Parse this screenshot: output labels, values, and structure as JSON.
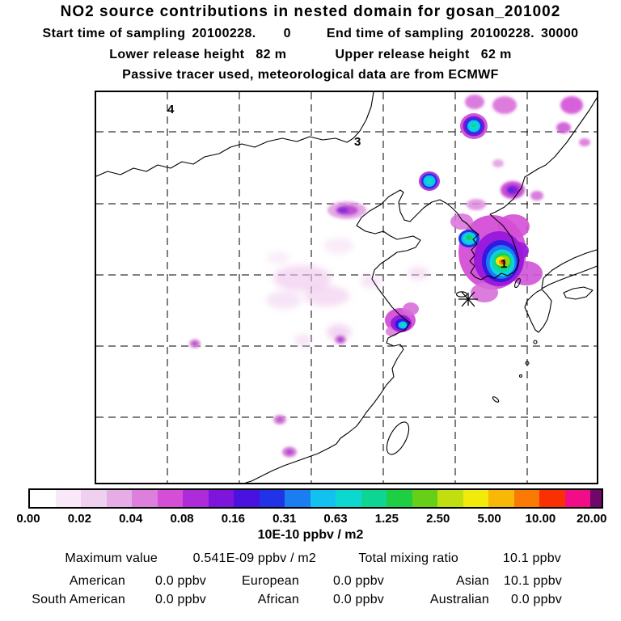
{
  "header": {
    "title": "NO2 source contributions in nested domain for gosan_201002",
    "sampling": {
      "start_label": "Start time of sampling",
      "start_date": "20100228.",
      "start_time": "0",
      "end_label": "End time of sampling",
      "end_date": "20100228.",
      "end_time": "30000"
    },
    "release": {
      "lower_label": "Lower release height",
      "lower_value": "82 m",
      "upper_label": "Upper release height",
      "upper_value": "62 m"
    },
    "tracer_note": "Passive tracer used, meteorological data are from ECMWF"
  },
  "map": {
    "region_labels": [
      "4",
      "3",
      "1"
    ]
  },
  "colorbar": {
    "tick_labels": [
      "0.00",
      "0.02",
      "0.04",
      "0.08",
      "0.16",
      "0.31",
      "0.63",
      "1.25",
      "2.50",
      "5.00",
      "10.00",
      "20.00"
    ],
    "units": "10E-10 ppbv / m2",
    "colors": [
      "#ffffff",
      "#f8e8f8",
      "#f0d0f0",
      "#e6ace6",
      "#dd7fdd",
      "#d44fd6",
      "#ad2bd9",
      "#7d15dc",
      "#4a12df",
      "#2133e6",
      "#1a7df0",
      "#12c1f0",
      "#0dd8cf",
      "#0ed593",
      "#1ecf44",
      "#66cf17",
      "#c0de10",
      "#f2ea0a",
      "#f9b807",
      "#fa7a04",
      "#f93102",
      "#f00d86"
    ],
    "overflow_color": "#70076b"
  },
  "stats": {
    "max_label": "Maximum value",
    "max_value": "0.541E-09 ppbv / m2",
    "total_label": "Total mixing ratio",
    "total_value": "10.1 ppbv",
    "rows": [
      {
        "label": "American",
        "value": "0.0 ppbv"
      },
      {
        "label": "European",
        "value": "0.0 ppbv"
      },
      {
        "label": "Asian",
        "value": "10.1 ppbv"
      },
      {
        "label": "South American",
        "value": "0.0 ppbv"
      },
      {
        "label": "African",
        "value": "0.0 ppbv"
      },
      {
        "label": "Australian",
        "value": "0.0 ppbv"
      }
    ]
  },
  "chart_data": {
    "type": "heatmap",
    "title": "NO2 source contributions in nested domain for gosan_201002",
    "receptor_site": "gosan_201002",
    "sampling_start": "20100228. 0",
    "sampling_end": "20100228. 30000",
    "lower_release_height_m": 82,
    "upper_release_height_m": 62,
    "tracer_note": "Passive tracer used, meteorological data are from ECMWF",
    "colorbar_units": "10E-10 ppbv / m2",
    "colorbar_levels": [
      0.0,
      0.02,
      0.04,
      0.08,
      0.16,
      0.31,
      0.63,
      1.25,
      2.5,
      5.0,
      10.0,
      20.0
    ],
    "maximum_value": "0.541E-09 ppbv / m2",
    "total_mixing_ratio_ppbv": 10.1,
    "contributions_ppbv": {
      "American": 0.0,
      "European": 0.0,
      "Asian": 10.1,
      "South American": 0.0,
      "African": 0.0,
      "Australian": 0.0
    },
    "map_region_numbers": [
      "4",
      "3",
      "1"
    ],
    "grid": true,
    "legend_position": "bottom",
    "hotspots": [
      {
        "location": "southeastern Korean Peninsula near receptor (labeled 1)",
        "peak_level": "> 5.0"
      },
      {
        "location": "Yangtze River Delta near Shanghai",
        "peak_level": "0.16 - 0.63"
      },
      {
        "location": "two isolated cells northeast of domain",
        "peak_level": "0.16 - 0.63"
      },
      {
        "location": "scattered faint patches over central and northern China",
        "peak_level": "< 0.08"
      }
    ]
  }
}
